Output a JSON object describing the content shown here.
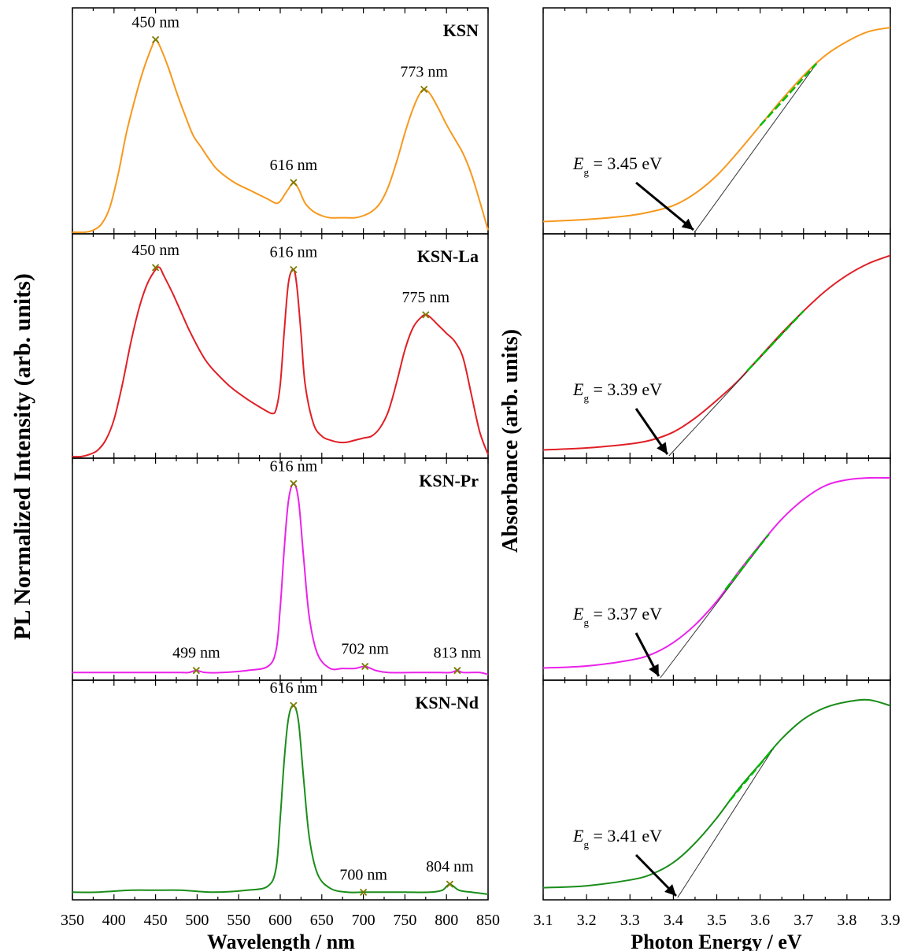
{
  "figure": {
    "left_ylabel": "PL Normalized Intensity (arb. units)",
    "right_ylabel": "Absorbance (arb. units)"
  },
  "chart_data": [
    {
      "type": "line",
      "panel": "PL",
      "xlabel": "Wavelength / nm",
      "xlim": [
        350,
        850
      ],
      "ylim": [
        0,
        1
      ],
      "xticks": [
        "350",
        "400",
        "450",
        "500",
        "550",
        "600",
        "650",
        "700",
        "750",
        "800",
        "850"
      ],
      "panels": [
        {
          "label": "KSN",
          "color": "#f7981d",
          "peak_marker_color": "#7a7a00",
          "x": [
            350,
            365,
            375,
            385,
            395,
            405,
            415,
            425,
            435,
            445,
            450,
            455,
            465,
            475,
            485,
            495,
            505,
            515,
            525,
            545,
            565,
            585,
            595,
            600,
            605,
            610,
            616,
            622,
            630,
            640,
            650,
            660,
            670,
            680,
            690,
            700,
            710,
            720,
            730,
            740,
            750,
            760,
            768,
            773,
            780,
            790,
            800,
            810,
            820,
            830,
            840,
            850
          ],
          "y": [
            0.0,
            0.0,
            0.01,
            0.04,
            0.12,
            0.28,
            0.48,
            0.64,
            0.78,
            0.89,
            0.93,
            0.9,
            0.8,
            0.68,
            0.57,
            0.47,
            0.41,
            0.35,
            0.3,
            0.24,
            0.2,
            0.16,
            0.14,
            0.15,
            0.18,
            0.21,
            0.24,
            0.21,
            0.14,
            0.1,
            0.08,
            0.07,
            0.07,
            0.07,
            0.07,
            0.08,
            0.1,
            0.14,
            0.22,
            0.34,
            0.48,
            0.6,
            0.67,
            0.69,
            0.67,
            0.6,
            0.52,
            0.45,
            0.38,
            0.28,
            0.15,
            0.01
          ],
          "peaks": [
            {
              "x": 450,
              "y": 0.93,
              "label": "450 nm"
            },
            {
              "x": 616,
              "y": 0.24,
              "label": "616 nm"
            },
            {
              "x": 773,
              "y": 0.69,
              "label": "773 nm"
            }
          ]
        },
        {
          "label": "KSN-La",
          "color": "#e01f26",
          "peak_marker_color": "#7a7a00",
          "x": [
            350,
            360,
            370,
            380,
            390,
            400,
            410,
            420,
            430,
            440,
            450,
            455,
            460,
            470,
            480,
            490,
            500,
            510,
            520,
            540,
            560,
            580,
            590,
            595,
            600,
            605,
            610,
            616,
            620,
            625,
            630,
            640,
            650,
            660,
            670,
            680,
            690,
            700,
            710,
            720,
            730,
            740,
            750,
            760,
            770,
            775,
            780,
            790,
            800,
            810,
            820,
            830,
            840,
            850
          ],
          "y": [
            0.0,
            0.0,
            0.01,
            0.03,
            0.08,
            0.18,
            0.35,
            0.55,
            0.72,
            0.84,
            0.91,
            0.92,
            0.88,
            0.8,
            0.71,
            0.62,
            0.54,
            0.47,
            0.42,
            0.34,
            0.28,
            0.23,
            0.21,
            0.23,
            0.35,
            0.62,
            0.85,
            0.91,
            0.83,
            0.6,
            0.35,
            0.16,
            0.1,
            0.08,
            0.07,
            0.07,
            0.08,
            0.09,
            0.1,
            0.14,
            0.22,
            0.36,
            0.52,
            0.63,
            0.68,
            0.69,
            0.68,
            0.64,
            0.6,
            0.56,
            0.48,
            0.3,
            0.12,
            0.01
          ],
          "peaks": [
            {
              "x": 450,
              "y": 0.92,
              "label": "450 nm"
            },
            {
              "x": 616,
              "y": 0.91,
              "label": "616 nm"
            },
            {
              "x": 775,
              "y": 0.69,
              "label": "775 nm"
            }
          ]
        },
        {
          "label": "KSN-Pr",
          "color": "#ea22ea",
          "peak_marker_color": "#7a7a00",
          "x": [
            350,
            400,
            450,
            480,
            490,
            499,
            510,
            530,
            560,
            585,
            595,
            600,
            605,
            610,
            616,
            622,
            628,
            635,
            645,
            660,
            675,
            690,
            702,
            715,
            730,
            760,
            790,
            805,
            813,
            820,
            840,
            850
          ],
          "y": [
            0.03,
            0.03,
            0.03,
            0.03,
            0.03,
            0.04,
            0.03,
            0.03,
            0.04,
            0.06,
            0.14,
            0.35,
            0.65,
            0.88,
            0.96,
            0.88,
            0.6,
            0.3,
            0.12,
            0.05,
            0.05,
            0.05,
            0.06,
            0.04,
            0.03,
            0.03,
            0.03,
            0.03,
            0.04,
            0.03,
            0.03,
            0.02
          ],
          "peaks": [
            {
              "x": 499,
              "y": 0.04,
              "label": "499 nm"
            },
            {
              "x": 616,
              "y": 0.96,
              "label": "616 nm"
            },
            {
              "x": 702,
              "y": 0.06,
              "label": "702 nm"
            },
            {
              "x": 813,
              "y": 0.04,
              "label": "813 nm"
            }
          ]
        },
        {
          "label": "KSN-Nd",
          "color": "#1a8d1a",
          "peak_marker_color": "#7a7a00",
          "x": [
            350,
            380,
            420,
            450,
            480,
            520,
            560,
            585,
            595,
            600,
            605,
            610,
            616,
            622,
            628,
            635,
            645,
            660,
            680,
            700,
            720,
            750,
            780,
            795,
            804,
            815,
            830,
            850
          ],
          "y": [
            0.03,
            0.03,
            0.04,
            0.04,
            0.04,
            0.03,
            0.04,
            0.06,
            0.15,
            0.4,
            0.7,
            0.9,
            0.96,
            0.88,
            0.6,
            0.3,
            0.12,
            0.05,
            0.03,
            0.03,
            0.03,
            0.03,
            0.03,
            0.04,
            0.07,
            0.04,
            0.03,
            0.02
          ],
          "peaks": [
            {
              "x": 616,
              "y": 0.96,
              "label": "616 nm"
            },
            {
              "x": 700,
              "y": 0.03,
              "label": "700 nm"
            },
            {
              "x": 804,
              "y": 0.07,
              "label": "804 nm"
            }
          ]
        }
      ]
    },
    {
      "type": "line",
      "panel": "Absorbance",
      "xlabel": "Photon Energy / eV",
      "xlim": [
        3.1,
        3.9
      ],
      "ylim": [
        0,
        1
      ],
      "xticks": [
        "3.1",
        "3.2",
        "3.3",
        "3.4",
        "3.5",
        "3.6",
        "3.7",
        "3.8",
        "3.9"
      ],
      "panels": [
        {
          "color": "#f7981d",
          "fit_color": "#00bb00",
          "x": [
            3.1,
            3.2,
            3.3,
            3.35,
            3.4,
            3.45,
            3.5,
            3.55,
            3.6,
            3.65,
            3.7,
            3.75,
            3.8,
            3.85,
            3.9
          ],
          "y": [
            0.03,
            0.04,
            0.06,
            0.08,
            0.11,
            0.17,
            0.26,
            0.38,
            0.51,
            0.64,
            0.76,
            0.86,
            0.93,
            0.98,
            1.0
          ],
          "eg": {
            "prefix": "E",
            "sub": "g",
            "value": " = 3.45 eV",
            "x": 3.45
          },
          "fit_range": [
            3.6,
            3.73
          ]
        },
        {
          "color": "#e01f26",
          "fit_color": "#00bb00",
          "x": [
            3.1,
            3.2,
            3.3,
            3.35,
            3.4,
            3.45,
            3.5,
            3.55,
            3.6,
            3.65,
            3.7,
            3.75,
            3.8,
            3.85,
            3.9
          ],
          "y": [
            0.01,
            0.02,
            0.04,
            0.06,
            0.1,
            0.17,
            0.26,
            0.36,
            0.48,
            0.6,
            0.71,
            0.81,
            0.89,
            0.95,
            0.99
          ],
          "eg": {
            "prefix": "E",
            "sub": "g",
            "value": " = 3.39 eV",
            "x": 3.39
          },
          "fit_range": [
            3.57,
            3.7
          ]
        },
        {
          "color": "#ea22ea",
          "fit_color": "#00bb00",
          "x": [
            3.1,
            3.2,
            3.3,
            3.35,
            3.4,
            3.45,
            3.5,
            3.55,
            3.6,
            3.65,
            3.7,
            3.75,
            3.8,
            3.85,
            3.9
          ],
          "y": [
            0.03,
            0.04,
            0.07,
            0.1,
            0.16,
            0.25,
            0.37,
            0.52,
            0.66,
            0.79,
            0.89,
            0.96,
            0.99,
            1.0,
            1.0
          ],
          "eg": {
            "prefix": "E",
            "sub": "g",
            "value": " = 3.37 eV",
            "x": 3.37
          },
          "fit_range": [
            3.52,
            3.62
          ]
        },
        {
          "color": "#1a8d1a",
          "fit_color": "#00bb00",
          "x": [
            3.1,
            3.2,
            3.3,
            3.35,
            3.4,
            3.45,
            3.5,
            3.55,
            3.6,
            3.65,
            3.7,
            3.75,
            3.8,
            3.85,
            3.9
          ],
          "y": [
            0.03,
            0.04,
            0.07,
            0.1,
            0.16,
            0.26,
            0.39,
            0.54,
            0.67,
            0.8,
            0.9,
            0.96,
            0.99,
            1.0,
            0.97
          ],
          "eg": {
            "prefix": "E",
            "sub": "g",
            "value": " = 3.41 eV",
            "x": 3.41
          },
          "fit_range": [
            3.53,
            3.63
          ]
        }
      ]
    }
  ]
}
